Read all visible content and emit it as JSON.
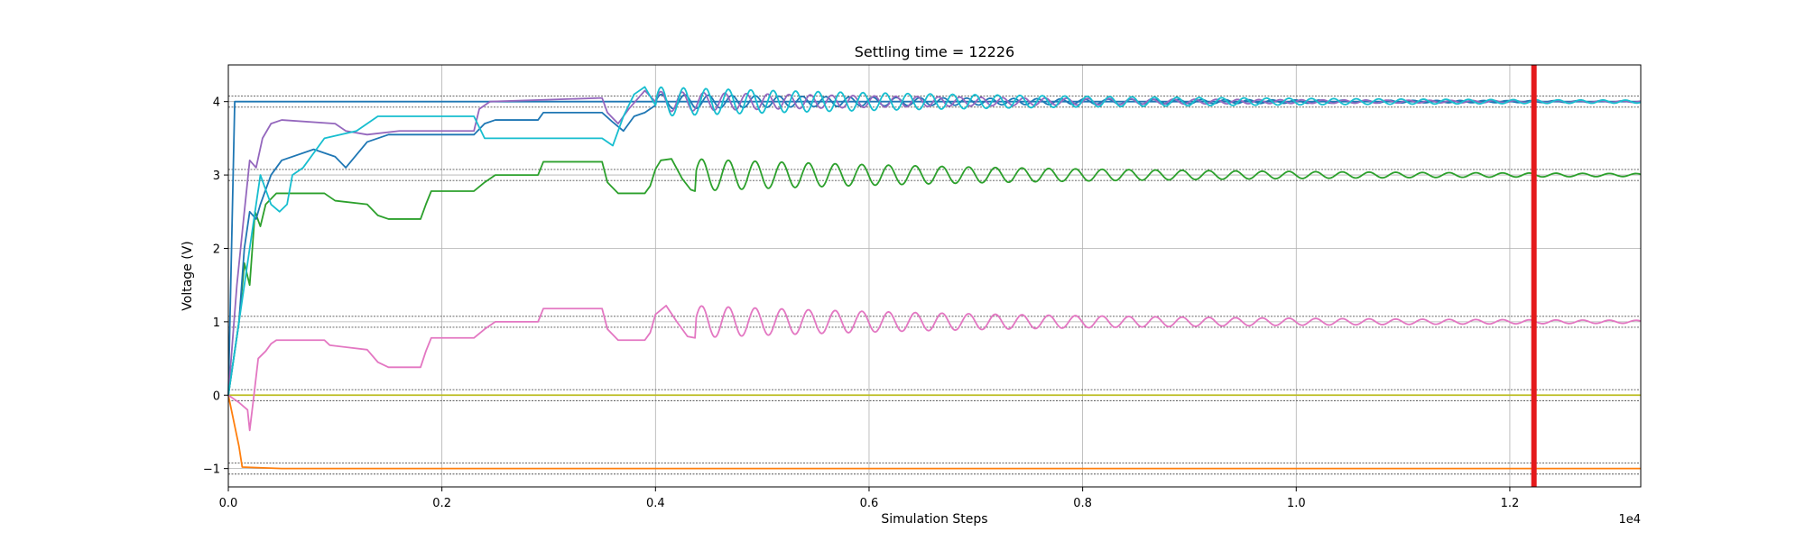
{
  "chart_data": {
    "type": "line",
    "title": "Settling time = 12226",
    "xlabel": "Simulation Steps",
    "ylabel": "Voltage (V)",
    "x_multiplier_label": "1e4",
    "xlim": [
      0,
      13226
    ],
    "ylim": [
      -1.25,
      4.5
    ],
    "xticks": [
      0,
      2000,
      4000,
      6000,
      8000,
      10000,
      12000
    ],
    "xtick_labels": [
      "0.0",
      "0.2",
      "0.4",
      "0.6",
      "0.8",
      "1.0",
      "1.2"
    ],
    "yticks": [
      -1,
      0,
      1,
      2,
      3,
      4
    ],
    "ytick_labels": [
      "−1",
      "0",
      "1",
      "2",
      "3",
      "4"
    ],
    "grid": true,
    "settling_marker": {
      "x": 12226,
      "color": "#e41a1c"
    },
    "tolerance_band_color": "#555555",
    "targets": [
      4,
      3,
      1,
      0,
      -1
    ],
    "tolerance": 0.075,
    "series": [
      {
        "color": "#1f77b4",
        "points": [
          [
            0,
            0
          ],
          [
            60,
            4
          ],
          [
            13226,
            4
          ]
        ]
      },
      {
        "color": "#ff7f0e",
        "points": [
          [
            0,
            0
          ],
          [
            100,
            -0.7
          ],
          [
            130,
            -0.98
          ],
          [
            500,
            -1
          ],
          [
            13226,
            -1
          ]
        ]
      },
      {
        "color": "#bcbd22",
        "points": [
          [
            0,
            0
          ],
          [
            13226,
            0
          ]
        ]
      },
      {
        "color": "#2ca02c",
        "points": [
          [
            0,
            0
          ],
          [
            100,
            1.0
          ],
          [
            150,
            1.8
          ],
          [
            200,
            1.5
          ],
          [
            250,
            2.5
          ],
          [
            300,
            2.3
          ],
          [
            350,
            2.6
          ],
          [
            450,
            2.75
          ],
          [
            900,
            2.75
          ],
          [
            1000,
            2.65
          ],
          [
            1300,
            2.6
          ],
          [
            1400,
            2.45
          ],
          [
            1500,
            2.4
          ],
          [
            1800,
            2.4
          ],
          [
            1850,
            2.6
          ],
          [
            1900,
            2.78
          ],
          [
            2300,
            2.78
          ],
          [
            2400,
            2.9
          ],
          [
            2500,
            3.0
          ],
          [
            2900,
            3.0
          ],
          [
            2950,
            3.18
          ],
          [
            3500,
            3.18
          ],
          [
            3550,
            2.9
          ],
          [
            3650,
            2.75
          ],
          [
            3900,
            2.75
          ],
          [
            3950,
            2.85
          ],
          [
            4000,
            3.08
          ],
          [
            4050,
            3.2
          ],
          [
            4150,
            3.22
          ],
          [
            4250,
            2.95
          ],
          [
            4330,
            2.8
          ],
          [
            4370,
            2.78
          ]
        ],
        "osc": {
          "x0": 4370,
          "x1": 13226,
          "center": 3.0,
          "amp0": 0.22,
          "amp1": 0.02,
          "period": 250
        }
      },
      {
        "color": "#e377c2",
        "points": [
          [
            0,
            0
          ],
          [
            100,
            -0.1
          ],
          [
            180,
            -0.2
          ],
          [
            200,
            -0.48
          ],
          [
            240,
            0.0
          ],
          [
            280,
            0.5
          ],
          [
            350,
            0.6
          ],
          [
            400,
            0.7
          ],
          [
            450,
            0.75
          ],
          [
            900,
            0.75
          ],
          [
            950,
            0.68
          ],
          [
            1300,
            0.62
          ],
          [
            1400,
            0.45
          ],
          [
            1500,
            0.38
          ],
          [
            1800,
            0.38
          ],
          [
            1850,
            0.6
          ],
          [
            1900,
            0.78
          ],
          [
            2300,
            0.78
          ],
          [
            2400,
            0.9
          ],
          [
            2500,
            1.0
          ],
          [
            2900,
            1.0
          ],
          [
            2950,
            1.18
          ],
          [
            3500,
            1.18
          ],
          [
            3550,
            0.9
          ],
          [
            3650,
            0.75
          ],
          [
            3900,
            0.75
          ],
          [
            3950,
            0.85
          ],
          [
            4000,
            1.1
          ],
          [
            4100,
            1.22
          ],
          [
            4200,
            1.0
          ],
          [
            4300,
            0.8
          ],
          [
            4370,
            0.78
          ]
        ],
        "osc": {
          "x0": 4370,
          "x1": 13226,
          "center": 1.0,
          "amp0": 0.22,
          "amp1": 0.02,
          "period": 250
        }
      },
      {
        "color": "#1f77b4",
        "points": [
          [
            0,
            0
          ],
          [
            100,
            1.0
          ],
          [
            150,
            2.0
          ],
          [
            200,
            2.5
          ],
          [
            260,
            2.4
          ],
          [
            300,
            2.6
          ],
          [
            400,
            3.0
          ],
          [
            500,
            3.2
          ],
          [
            800,
            3.35
          ],
          [
            1000,
            3.25
          ],
          [
            1100,
            3.1
          ],
          [
            1300,
            3.45
          ],
          [
            1500,
            3.55
          ],
          [
            2300,
            3.55
          ],
          [
            2400,
            3.7
          ],
          [
            2500,
            3.75
          ],
          [
            2900,
            3.75
          ],
          [
            2950,
            3.85
          ],
          [
            3500,
            3.85
          ],
          [
            3600,
            3.72
          ],
          [
            3700,
            3.6
          ],
          [
            3800,
            3.8
          ],
          [
            3900,
            3.85
          ],
          [
            4000,
            3.95
          ]
        ],
        "osc": {
          "x0": 4000,
          "x1": 13226,
          "center": 4.0,
          "amp0": 0.1,
          "amp1": 0.01,
          "period": 220
        }
      },
      {
        "color": "#9467bd",
        "points": [
          [
            0,
            0
          ],
          [
            80,
            1.5
          ],
          [
            150,
            2.5
          ],
          [
            200,
            3.2
          ],
          [
            260,
            3.1
          ],
          [
            320,
            3.5
          ],
          [
            400,
            3.7
          ],
          [
            500,
            3.75
          ],
          [
            1000,
            3.7
          ],
          [
            1100,
            3.6
          ],
          [
            1300,
            3.55
          ],
          [
            1600,
            3.6
          ],
          [
            2300,
            3.6
          ],
          [
            2350,
            3.9
          ],
          [
            2450,
            4.0
          ],
          [
            3500,
            4.05
          ],
          [
            3550,
            3.85
          ],
          [
            3650,
            3.7
          ],
          [
            3750,
            3.9
          ],
          [
            3900,
            4.15
          ],
          [
            4000,
            4.0
          ]
        ],
        "osc": {
          "x0": 4000,
          "x1": 13226,
          "center": 4.0,
          "amp0": 0.14,
          "amp1": 0.01,
          "period": 200
        }
      },
      {
        "color": "#17becf",
        "points": [
          [
            0,
            0
          ],
          [
            100,
            1.0
          ],
          [
            200,
            2.0
          ],
          [
            300,
            3.0
          ],
          [
            350,
            2.8
          ],
          [
            400,
            2.6
          ],
          [
            480,
            2.5
          ],
          [
            550,
            2.6
          ],
          [
            600,
            3.0
          ],
          [
            700,
            3.1
          ],
          [
            900,
            3.5
          ],
          [
            1200,
            3.6
          ],
          [
            1400,
            3.8
          ],
          [
            2300,
            3.8
          ],
          [
            2400,
            3.5
          ],
          [
            3500,
            3.5
          ],
          [
            3600,
            3.4
          ],
          [
            3700,
            3.8
          ],
          [
            3800,
            4.1
          ],
          [
            3900,
            4.2
          ],
          [
            4000,
            3.95
          ]
        ],
        "osc": {
          "x0": 4000,
          "x1": 13226,
          "center": 4.0,
          "amp0": 0.2,
          "amp1": 0.02,
          "period": 210
        }
      }
    ]
  }
}
